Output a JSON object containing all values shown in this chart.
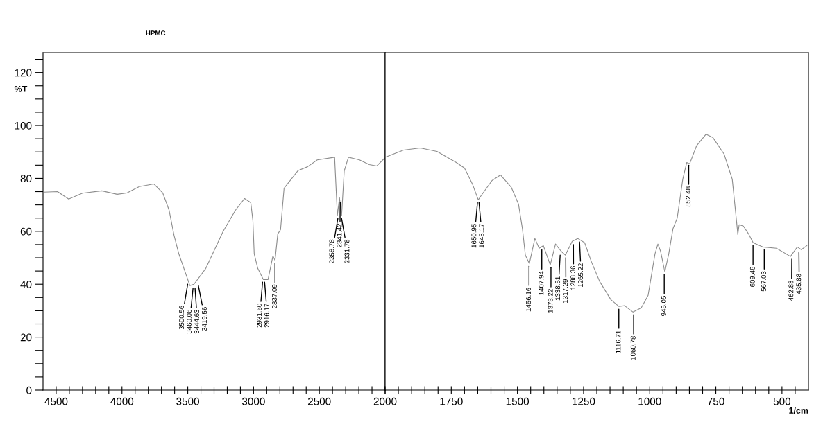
{
  "chart_data": [
    {
      "type": "line",
      "title": "HPMC",
      "ylabel": "%T",
      "color": "#8c8c8c",
      "x": [
        4592,
        4490,
        4405,
        4300,
        4153,
        4037,
        3963,
        3868,
        3758,
        3690,
        3642,
        3605,
        3568,
        3484,
        3453,
        3363,
        3231,
        3137,
        3068,
        3021,
        3005,
        2995,
        2968,
        2926,
        2890,
        2853,
        2837,
        2816,
        2795,
        2768,
        2663,
        2590,
        2516,
        2384,
        2363,
        2347,
        2331,
        2311,
        2279,
        2195,
        2121,
        2063,
        2005
      ],
      "values": [
        74.8,
        75,
        72.2,
        74.4,
        75.3,
        74,
        74.5,
        76.9,
        77.9,
        74.5,
        68,
        58.6,
        51.5,
        39.5,
        40,
        46,
        60,
        68,
        72.4,
        70.8,
        64,
        51.5,
        46,
        41.8,
        41.8,
        50.7,
        49,
        59,
        60.6,
        76.3,
        82.9,
        84.4,
        87,
        88,
        66,
        72.7,
        66,
        82.8,
        88,
        87,
        85.2,
        84.7,
        87.6
      ],
      "xlim": [
        4600,
        2000
      ],
      "xticks": [
        4500,
        {
          "value": 4400,
          "label": null
        },
        {
          "value": 4300,
          "label": null
        },
        {
          "value": 4200,
          "label": null
        },
        {
          "value": 4100,
          "label": null
        },
        4000,
        {
          "value": 3900,
          "label": null
        },
        {
          "value": 3800,
          "label": null
        },
        {
          "value": 3700,
          "label": null
        },
        {
          "value": 3600,
          "label": null
        },
        3500,
        {
          "value": 3400,
          "label": null
        },
        {
          "value": 3300,
          "label": null
        },
        {
          "value": 3200,
          "label": null
        },
        {
          "value": 3100,
          "label": null
        },
        3000,
        {
          "value": 2900,
          "label": null
        },
        {
          "value": 2800,
          "label": null
        },
        {
          "value": 2700,
          "label": null
        },
        {
          "value": 2600,
          "label": null
        },
        2500,
        {
          "value": 2400,
          "label": null
        },
        {
          "value": 2300,
          "label": null
        },
        {
          "value": 2200,
          "label": null
        },
        {
          "value": 2100,
          "label": null
        },
        2000
      ],
      "ylim": [
        0,
        127.5
      ],
      "yticks": [
        0,
        {
          "value": 5,
          "label": null
        },
        {
          "value": 10,
          "label": null
        },
        {
          "value": 15,
          "label": null
        },
        20,
        {
          "value": 25,
          "label": null
        },
        {
          "value": 30,
          "label": null
        },
        {
          "value": 35,
          "label": null
        },
        40,
        {
          "value": 45,
          "label": null
        },
        {
          "value": 50,
          "label": null
        },
        {
          "value": 55,
          "label": null
        },
        60,
        {
          "value": 65,
          "label": null
        },
        {
          "value": 70,
          "label": null
        },
        {
          "value": 75,
          "label": null
        },
        80,
        {
          "value": 85,
          "label": null
        },
        {
          "value": 90,
          "label": null
        },
        {
          "value": 95,
          "label": null
        },
        100,
        {
          "value": 105,
          "label": null
        },
        {
          "value": 110,
          "label": null
        },
        {
          "value": 115,
          "label": null
        },
        120,
        {
          "value": 125,
          "label": null
        }
      ],
      "annotations": [
        {
          "text": "3500.56",
          "x": 3500.56,
          "y": 41
        },
        {
          "text": "3460.06",
          "x": 3460.06,
          "y": 39.5
        },
        {
          "text": "3444.63",
          "x": 3444.63,
          "y": 39.5
        },
        {
          "text": "3419.56",
          "x": 3419.56,
          "y": 40.5
        },
        {
          "text": "2931.60",
          "x": 2931.6,
          "y": 41.8
        },
        {
          "text": "2916.17",
          "x": 2916.17,
          "y": 41.8
        },
        {
          "text": "2837.09",
          "x": 2837.09,
          "y": 49
        },
        {
          "text": "2358.78",
          "x": 2358.78,
          "y": 66
        },
        {
          "text": "2341.42",
          "x": 2341.42,
          "y": 72
        },
        {
          "text": "2331.78",
          "x": 2331.78,
          "y": 66
        }
      ]
    },
    {
      "type": "line",
      "xlabel": "1/cm",
      "color": "#8c8c8c",
      "tick_labels": "x",
      "x": [
        1997,
        1930,
        1867,
        1804,
        1731,
        1700,
        1669,
        1648,
        1637,
        1596,
        1564,
        1523,
        1496,
        1481,
        1470,
        1455,
        1434,
        1418,
        1402,
        1376,
        1356,
        1335,
        1319,
        1293,
        1272,
        1246,
        1220,
        1189,
        1147,
        1116,
        1095,
        1063,
        1032,
        1006,
        980,
        969,
        959,
        943,
        928,
        912,
        896,
        875,
        860,
        849,
        823,
        787,
        761,
        719,
        688,
        672,
        667,
        662,
        646,
        625,
        609,
        573,
        521,
        468,
        442,
        427,
        406
      ],
      "values": [
        88.1,
        90.7,
        91.5,
        90.2,
        86,
        83.9,
        77.6,
        71.9,
        73.5,
        79.2,
        81.3,
        76.6,
        70.3,
        60.9,
        51,
        47.8,
        57.3,
        53.6,
        54.6,
        47.3,
        55.2,
        52.5,
        51,
        56.2,
        57.3,
        55.7,
        48.4,
        41,
        34.2,
        31.6,
        31.9,
        29.5,
        31.1,
        35.8,
        51.5,
        55.2,
        52.5,
        44.7,
        51.5,
        61,
        65,
        79.7,
        86,
        85.5,
        92.3,
        96.7,
        95.4,
        89.2,
        79.7,
        64,
        58.8,
        62.5,
        62,
        58.8,
        55.7,
        54.1,
        53.6,
        50.5,
        54.1,
        53.1,
        54.6
      ],
      "xlim": [
        2000,
        400
      ],
      "xticks": [
        {
          "value": 2000,
          "label": null
        },
        {
          "value": 1950,
          "label": null
        },
        {
          "value": 1900,
          "label": null
        },
        {
          "value": 1850,
          "label": null
        },
        {
          "value": 1800,
          "label": null
        },
        1750,
        {
          "value": 1700,
          "label": null
        },
        {
          "value": 1650,
          "label": null
        },
        {
          "value": 1600,
          "label": null
        },
        {
          "value": 1550,
          "label": null
        },
        1500,
        {
          "value": 1450,
          "label": null
        },
        {
          "value": 1400,
          "label": null
        },
        {
          "value": 1350,
          "label": null
        },
        {
          "value": 1300,
          "label": null
        },
        1250,
        {
          "value": 1200,
          "label": null
        },
        {
          "value": 1150,
          "label": null
        },
        {
          "value": 1100,
          "label": null
        },
        {
          "value": 1050,
          "label": null
        },
        1000,
        {
          "value": 950,
          "label": null
        },
        {
          "value": 900,
          "label": null
        },
        {
          "value": 850,
          "label": null
        },
        {
          "value": 800,
          "label": null
        },
        750,
        {
          "value": 700,
          "label": null
        },
        {
          "value": 650,
          "label": null
        },
        {
          "value": 600,
          "label": null
        },
        {
          "value": 550,
          "label": null
        },
        500,
        {
          "value": 450,
          "label": null
        }
      ],
      "ylim": [
        0,
        127.5
      ],
      "annotations": [
        {
          "text": "1650.95",
          "x": 1650.95,
          "y": 71.9
        },
        {
          "text": "1645.17",
          "x": 1645.17,
          "y": 71.9
        },
        {
          "text": "1456.16",
          "x": 1456.16,
          "y": 47.8
        },
        {
          "text": "1407.94",
          "x": 1407.94,
          "y": 54
        },
        {
          "text": "1373.22",
          "x": 1373.22,
          "y": 47.3
        },
        {
          "text": "1338.51",
          "x": 1338.51,
          "y": 52
        },
        {
          "text": "1317.29",
          "x": 1317.29,
          "y": 51
        },
        {
          "text": "1288.36",
          "x": 1288.36,
          "y": 56
        },
        {
          "text": "1265.22",
          "x": 1265.22,
          "y": 57
        },
        {
          "text": "1116.71",
          "x": 1116.71,
          "y": 31.6
        },
        {
          "text": "1060.78",
          "x": 1060.78,
          "y": 29.5
        },
        {
          "text": "945.05",
          "x": 945.05,
          "y": 44.7
        },
        {
          "text": "852.48",
          "x": 852.48,
          "y": 86
        },
        {
          "text": "609.46",
          "x": 609.46,
          "y": 55.7
        },
        {
          "text": "567.03",
          "x": 567.03,
          "y": 54
        },
        {
          "text": "462.88",
          "x": 462.88,
          "y": 50.5
        },
        {
          "text": "435.88",
          "x": 435.88,
          "y": 53
        }
      ]
    }
  ]
}
